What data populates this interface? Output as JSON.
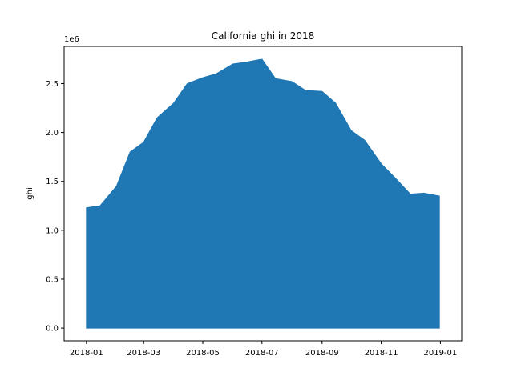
{
  "chart_data": {
    "type": "area",
    "title": "California ghi in 2018",
    "xlabel": "",
    "ylabel": "ghi",
    "y_offset_label": "1e6",
    "x_tick_labels": [
      "2018-01",
      "2018-03",
      "2018-05",
      "2018-07",
      "2018-09",
      "2018-11",
      "2019-01"
    ],
    "x_tick_values": [
      "2018-01-01",
      "2018-03-01",
      "2018-05-01",
      "2018-07-01",
      "2018-09-01",
      "2018-11-01",
      "2019-01-01"
    ],
    "y_tick_labels": [
      "0.0",
      "0.5",
      "1.0",
      "1.5",
      "2.0",
      "2.5"
    ],
    "y_tick_values": [
      0,
      500000,
      1000000,
      1500000,
      2000000,
      2500000
    ],
    "xlim": [
      "2017-12-09",
      "2019-01-23"
    ],
    "ylim": [
      -130000,
      2880000
    ],
    "grid": false,
    "color": "#1f77b4",
    "series": [
      {
        "x": [
          "2018-01-01",
          "2018-01-15",
          "2018-02-01",
          "2018-02-15",
          "2018-03-01",
          "2018-03-15",
          "2018-04-01",
          "2018-04-15",
          "2018-05-01",
          "2018-05-15",
          "2018-06-01",
          "2018-06-15",
          "2018-07-01",
          "2018-07-15",
          "2018-08-01",
          "2018-08-15",
          "2018-09-01",
          "2018-09-15",
          "2018-10-01",
          "2018-10-15",
          "2018-11-01",
          "2018-11-15",
          "2018-12-01",
          "2018-12-15",
          "2018-12-31"
        ],
        "values": [
          1230000,
          1250000,
          1450000,
          1800000,
          1900000,
          2150000,
          2300000,
          2500000,
          2560000,
          2600000,
          2700000,
          2720000,
          2750000,
          2550000,
          2520000,
          2430000,
          2420000,
          2300000,
          2020000,
          1920000,
          1680000,
          1540000,
          1370000,
          1380000,
          1350000
        ]
      }
    ]
  }
}
